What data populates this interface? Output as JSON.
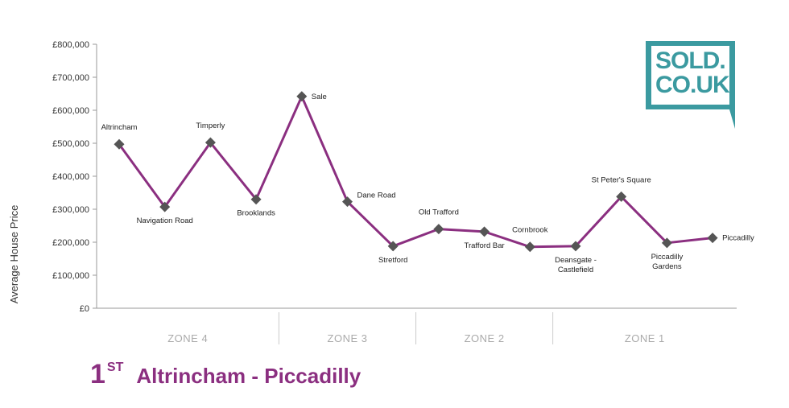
{
  "title": {
    "rank": "1",
    "rank_suffix": "ST",
    "route": "Altrincham - Piccadilly"
  },
  "logo": {
    "line1": "SOLD.",
    "line2": "CO.UK",
    "color": "#3b9aa0"
  },
  "colors": {
    "line": "#8b2f80",
    "marker": "#555555",
    "axis": "#999999"
  },
  "chart_data": {
    "type": "line",
    "ylabel": "Average House Price",
    "xlabel": "",
    "ylim": [
      0,
      800000
    ],
    "yticks": [
      0,
      100000,
      200000,
      300000,
      400000,
      500000,
      600000,
      700000,
      800000
    ],
    "ytick_labels": [
      "£0",
      "£100,000",
      "£200,000",
      "£300,000",
      "£400,000",
      "£500,000",
      "£600,000",
      "£700,000",
      "£800,000"
    ],
    "grid": false,
    "points": [
      {
        "label": [
          "Altrincham"
        ],
        "value": 497000,
        "label_pos": "above"
      },
      {
        "label": [
          "Navigation Road"
        ],
        "value": 307000,
        "label_pos": "below"
      },
      {
        "label": [
          "Timperly"
        ],
        "value": 502000,
        "label_pos": "above"
      },
      {
        "label": [
          "Brooklands"
        ],
        "value": 330000,
        "label_pos": "below"
      },
      {
        "label": [
          "Sale"
        ],
        "value": 642000,
        "label_pos": "right"
      },
      {
        "label": [
          "Dane Road"
        ],
        "value": 323000,
        "label_pos": "right-above"
      },
      {
        "label": [
          "Stretford"
        ],
        "value": 188000,
        "label_pos": "below"
      },
      {
        "label": [
          "Old Trafford"
        ],
        "value": 240000,
        "label_pos": "above"
      },
      {
        "label": [
          "Trafford Bar"
        ],
        "value": 232000,
        "label_pos": "below"
      },
      {
        "label": [
          "Cornbrook"
        ],
        "value": 186000,
        "label_pos": "above"
      },
      {
        "label": [
          "Deansgate -",
          "Castlefield"
        ],
        "value": 188000,
        "label_pos": "below"
      },
      {
        "label": [
          "St Peter's Square"
        ],
        "value": 338000,
        "label_pos": "above"
      },
      {
        "label": [
          "Piccadilly",
          "Gardens"
        ],
        "value": 198000,
        "label_pos": "below"
      },
      {
        "label": [
          "Piccadilly"
        ],
        "value": 213000,
        "label_pos": "right"
      }
    ],
    "zones": [
      {
        "name": "ZONE 4",
        "from": 0,
        "to": 3
      },
      {
        "name": "ZONE 3",
        "from": 3,
        "to": 6
      },
      {
        "name": "ZONE 2",
        "from": 6,
        "to": 9
      },
      {
        "name": "ZONE 1",
        "from": 9,
        "to": 13
      }
    ]
  }
}
